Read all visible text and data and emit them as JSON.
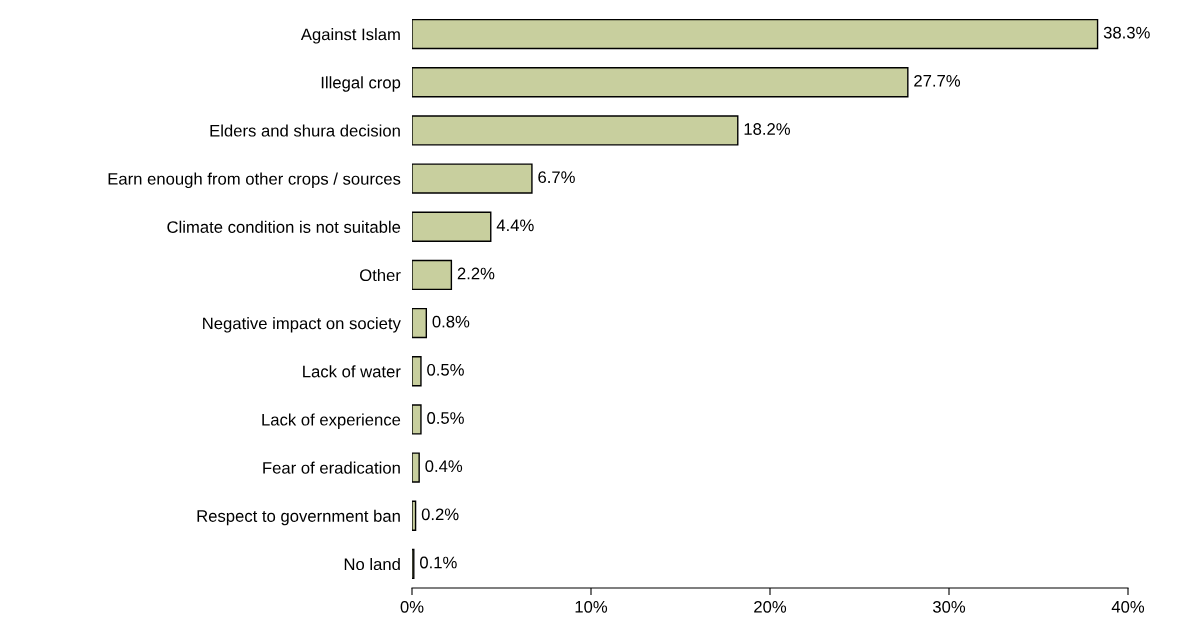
{
  "chart_data": {
    "type": "bar",
    "orientation": "horizontal",
    "categories": [
      "Against Islam",
      "Illegal crop",
      "Elders and shura decision",
      "Earn enough from other crops / sources",
      "Climate condition is not suitable",
      "Other",
      "Negative impact on society",
      "Lack of water",
      "Lack of experience",
      "Fear of eradication",
      "Respect to government ban",
      "No land"
    ],
    "values": [
      38.3,
      27.7,
      18.2,
      6.7,
      4.4,
      2.2,
      0.8,
      0.5,
      0.5,
      0.4,
      0.2,
      0.1
    ],
    "value_labels": [
      "38.3%",
      "27.7%",
      "18.2%",
      "6.7%",
      "4.4%",
      "2.2%",
      "0.8%",
      "0.5%",
      "0.5%",
      "0.4%",
      "0.2%",
      "0.1%"
    ],
    "color": "#c8cf9e",
    "xlim": [
      0,
      40
    ],
    "xticks": [
      {
        "value": 0,
        "label": "0%"
      },
      {
        "value": 10,
        "label": "10%"
      },
      {
        "value": 20,
        "label": "20%"
      },
      {
        "value": 30,
        "label": "30%"
      },
      {
        "value": 40,
        "label": "40%"
      }
    ],
    "grid": false,
    "legend": false
  }
}
